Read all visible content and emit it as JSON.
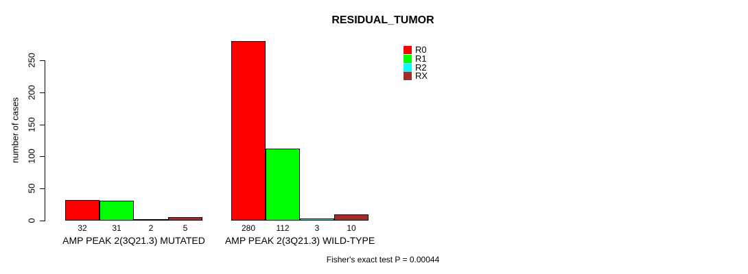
{
  "chart_data": {
    "type": "bar",
    "title": "RESIDUAL_TUMOR",
    "xlabel": "",
    "ylabel": "number of cases",
    "categories": [
      "AMP PEAK 2(3Q21.3) MUTATED",
      "AMP PEAK 2(3Q21.3) WILD-TYPE"
    ],
    "series": [
      {
        "name": "R0",
        "color": "#ff0000",
        "values": [
          32,
          280
        ]
      },
      {
        "name": "R1",
        "color": "#00ff00",
        "values": [
          31,
          112
        ]
      },
      {
        "name": "R2",
        "color": "#00ffff",
        "values": [
          2,
          3
        ]
      },
      {
        "name": "RX",
        "color": "#a52a2a",
        "values": [
          5,
          10
        ]
      }
    ],
    "y_ticks": [
      0,
      50,
      100,
      150,
      200,
      250
    ],
    "ylim": [
      0,
      280
    ],
    "grid": false,
    "legend_position": "top-right",
    "bar_value_labels": true,
    "annotation": "Fisher's exact test P = 0.00044"
  }
}
